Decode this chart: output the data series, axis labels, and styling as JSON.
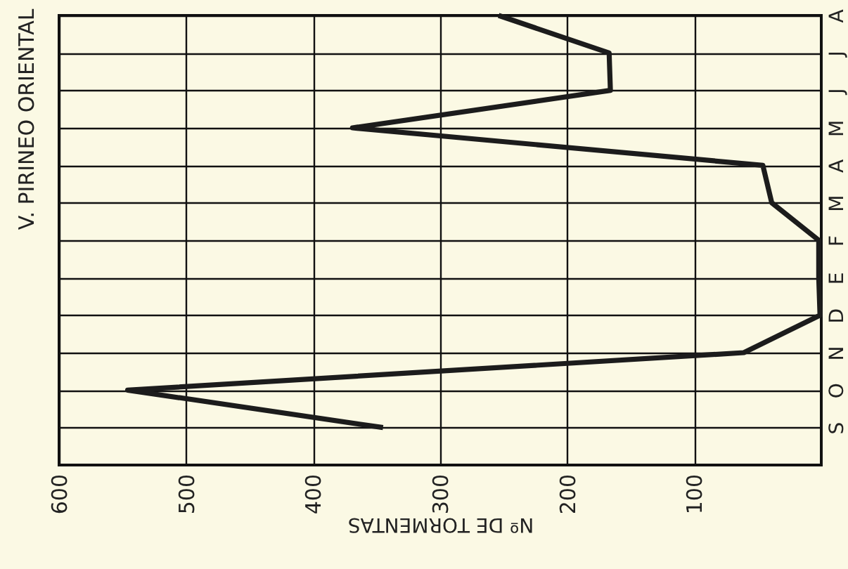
{
  "chart_data": {
    "type": "line",
    "title": "V. PIRINEO ORIENTAL",
    "xlabel": "Nº DE TORMENTAS",
    "categories": [
      "A",
      "J",
      "J",
      "M",
      "A",
      "M",
      "F",
      "E",
      "D",
      "N",
      "O",
      "S"
    ],
    "orientation": "horizontal",
    "series": [
      {
        "color": "#1c1c1c",
        "values": [
          254,
          167,
          166,
          369,
          46,
          39,
          2,
          2,
          1,
          61,
          546,
          345
        ]
      }
    ],
    "xlim": [
      600,
      0
    ],
    "xticks": [
      600,
      500,
      400,
      300,
      200,
      100
    ],
    "grid": true,
    "marker": "none",
    "line_style": "solid"
  }
}
